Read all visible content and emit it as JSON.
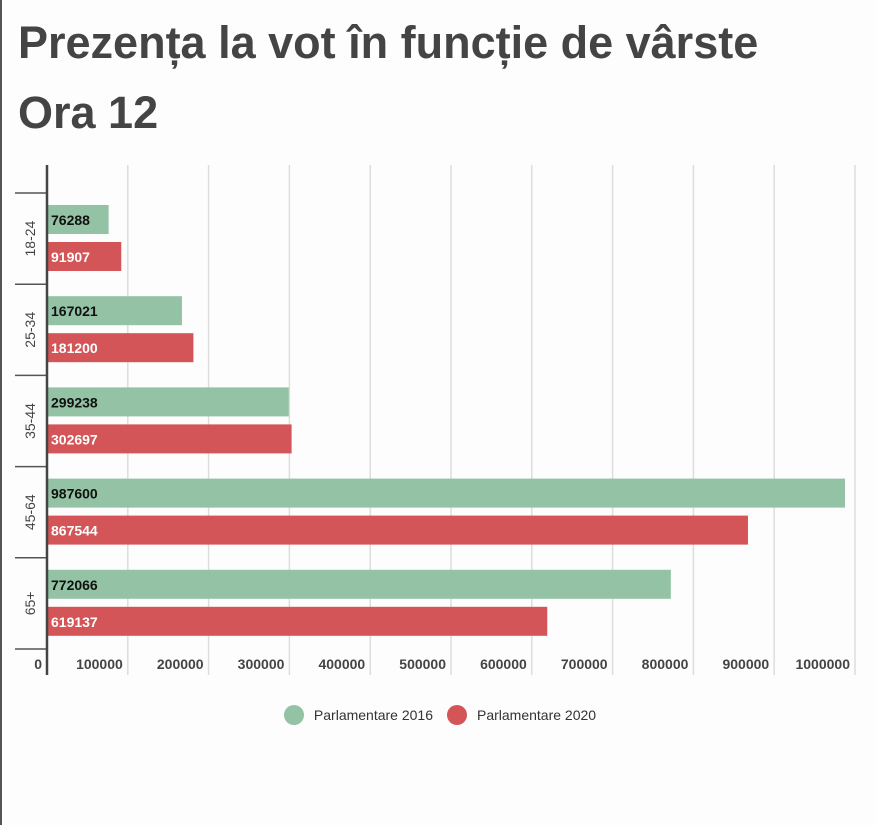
{
  "chart_data": {
    "type": "bar",
    "orientation": "horizontal",
    "title": "Prezența la vot în funcție de vârste",
    "subtitle": "Ora 12",
    "categories": [
      "18-24",
      "25-34",
      "35-44",
      "45-64",
      "65+"
    ],
    "series": [
      {
        "name": "Parlamentare 2016",
        "color": "#93c2a4",
        "values": [
          76288,
          167021,
          299238,
          987600,
          772066
        ]
      },
      {
        "name": "Parlamentare 2020",
        "color": "#d35558",
        "values": [
          91907,
          181200,
          302697,
          867544,
          619137
        ]
      }
    ],
    "xticks": [
      "0",
      "100000",
      "200000",
      "300000",
      "400000",
      "500000",
      "600000",
      "700000",
      "800000",
      "900000",
      "1000000"
    ],
    "xlim": [
      0,
      1000000
    ],
    "grid": true,
    "legend": "bottom-center"
  }
}
